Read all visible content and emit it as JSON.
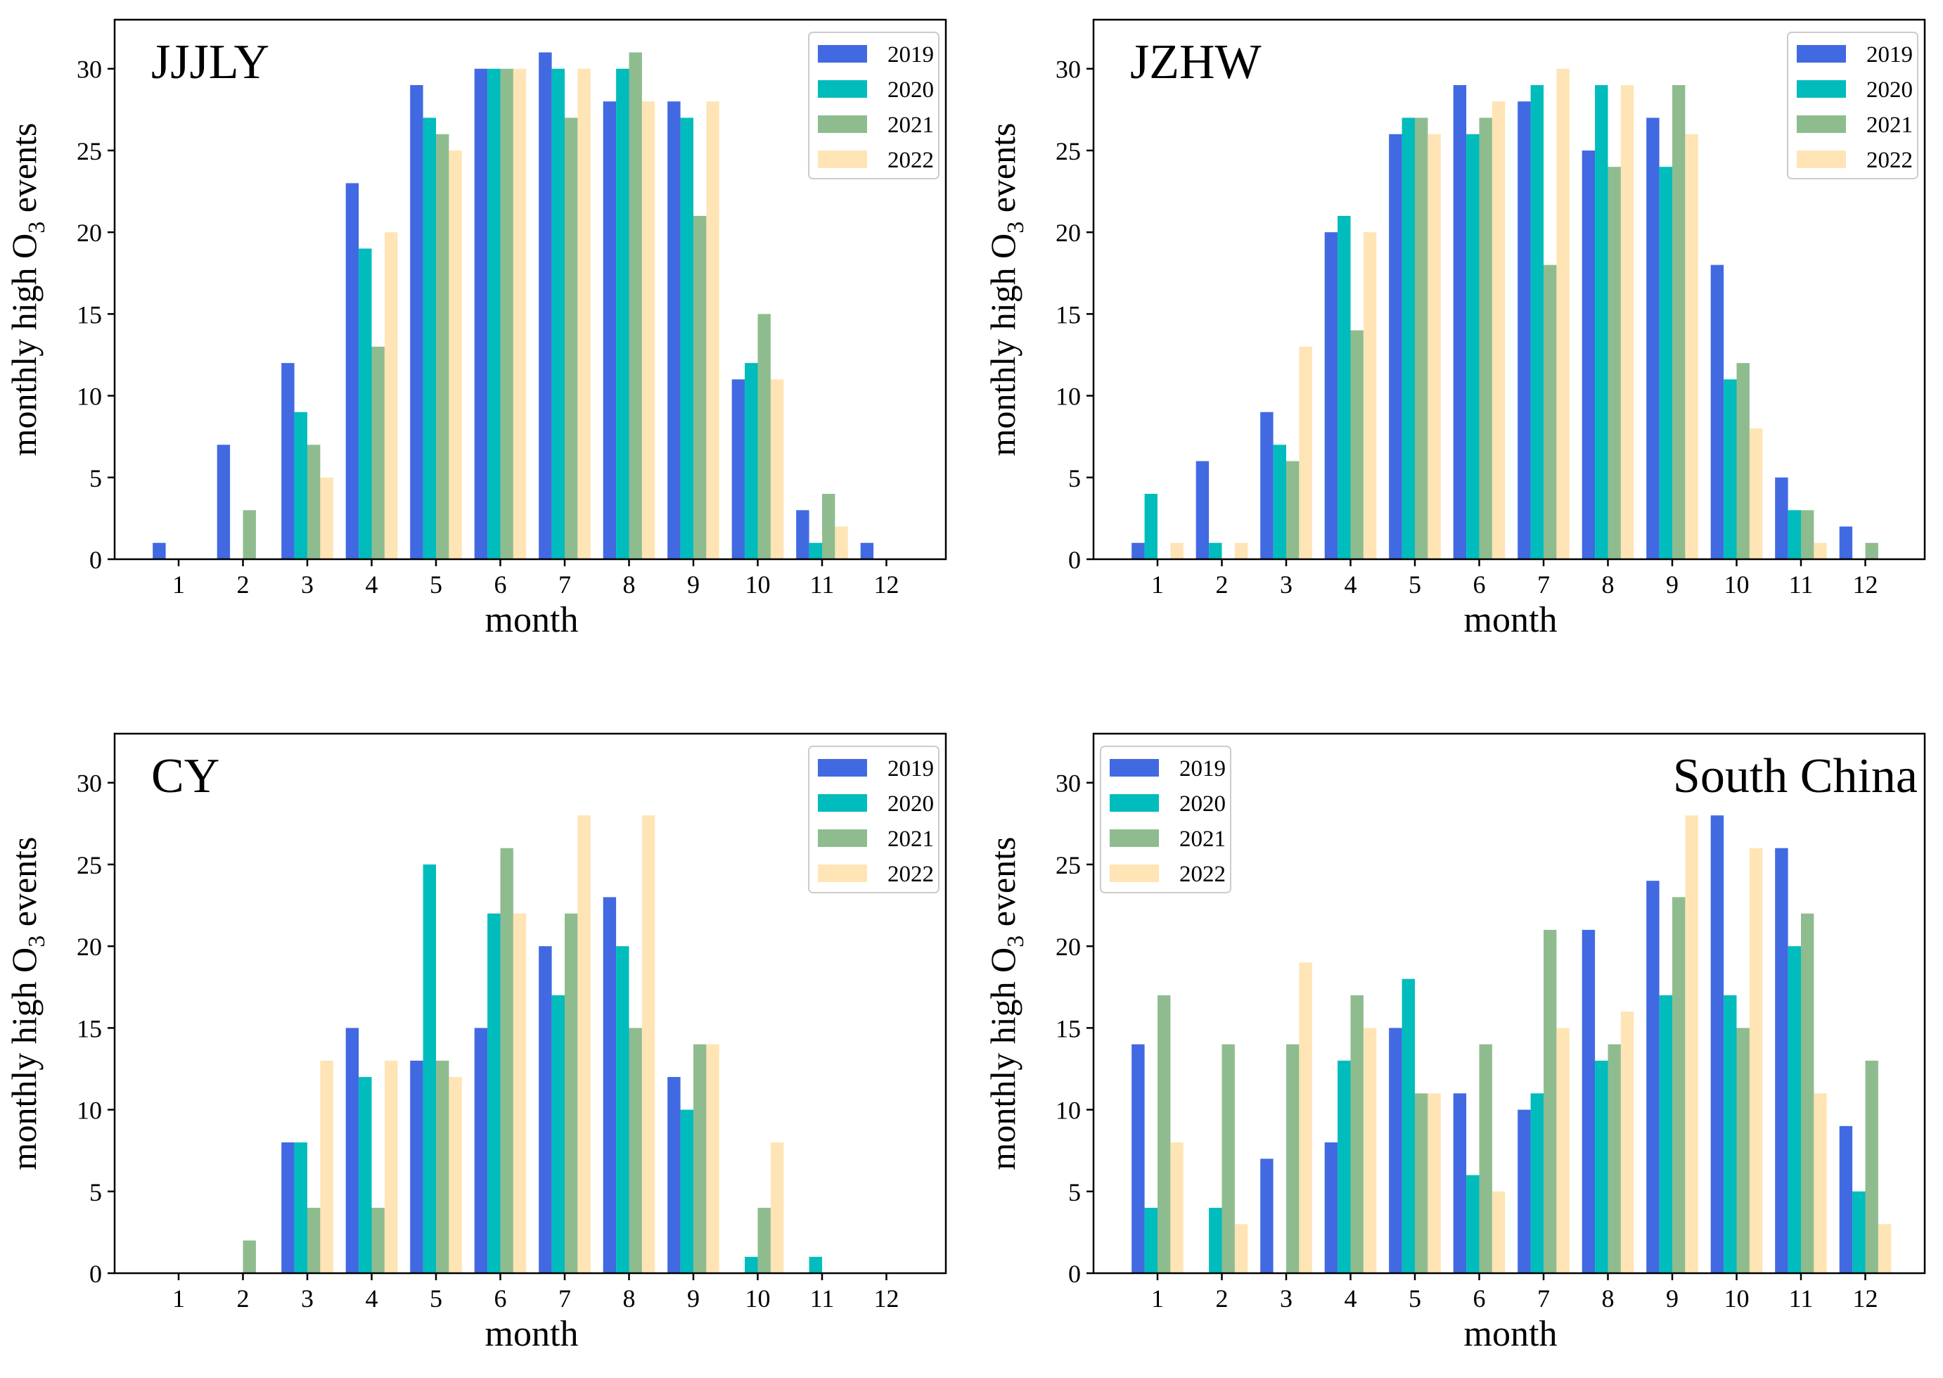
{
  "colors": {
    "2019": "#4169e1",
    "2020": "#00bcbc",
    "2021": "#8fbc8f",
    "2022": "#ffe4b5",
    "axis": "#000000"
  },
  "chart_data": [
    {
      "type": "bar",
      "title": "JJJLY",
      "xlabel": "month",
      "ylabel_main": "monthly high O",
      "ylabel_sub": "3",
      "ylabel_tail": " events",
      "categories": [
        "1",
        "2",
        "3",
        "4",
        "5",
        "6",
        "7",
        "8",
        "9",
        "10",
        "11",
        "12"
      ],
      "ylim": [
        0,
        33
      ],
      "yticks": [
        0,
        5,
        10,
        15,
        20,
        25,
        30
      ],
      "legend_position": "top-right",
      "title_position": "top-left",
      "series": [
        {
          "name": "2019",
          "values": [
            1,
            7,
            12,
            23,
            29,
            30,
            31,
            28,
            28,
            11,
            3,
            1
          ]
        },
        {
          "name": "2020",
          "values": [
            0,
            0,
            9,
            19,
            27,
            30,
            30,
            30,
            27,
            12,
            1,
            0
          ]
        },
        {
          "name": "2021",
          "values": [
            0,
            3,
            7,
            13,
            26,
            30,
            27,
            31,
            21,
            15,
            4,
            0
          ]
        },
        {
          "name": "2022",
          "values": [
            0,
            0,
            5,
            20,
            25,
            30,
            30,
            28,
            28,
            11,
            2,
            0
          ]
        }
      ]
    },
    {
      "type": "bar",
      "title": "JZHW",
      "xlabel": "month",
      "ylabel_main": "monthly high O",
      "ylabel_sub": "3",
      "ylabel_tail": " events",
      "categories": [
        "1",
        "2",
        "3",
        "4",
        "5",
        "6",
        "7",
        "8",
        "9",
        "10",
        "11",
        "12"
      ],
      "ylim": [
        0,
        33
      ],
      "yticks": [
        0,
        5,
        10,
        15,
        20,
        25,
        30
      ],
      "legend_position": "top-right",
      "title_position": "top-left",
      "series": [
        {
          "name": "2019",
          "values": [
            1,
            6,
            9,
            20,
            26,
            29,
            28,
            25,
            27,
            18,
            5,
            2
          ]
        },
        {
          "name": "2020",
          "values": [
            4,
            1,
            7,
            21,
            27,
            26,
            29,
            29,
            24,
            11,
            3,
            0
          ]
        },
        {
          "name": "2021",
          "values": [
            0,
            0,
            6,
            14,
            27,
            27,
            18,
            24,
            29,
            12,
            3,
            1
          ]
        },
        {
          "name": "2022",
          "values": [
            1,
            1,
            13,
            20,
            26,
            28,
            30,
            29,
            26,
            8,
            1,
            0
          ]
        }
      ]
    },
    {
      "type": "bar",
      "title": "CY",
      "xlabel": "month",
      "ylabel_main": "monthly high O",
      "ylabel_sub": "3",
      "ylabel_tail": " events",
      "categories": [
        "1",
        "2",
        "3",
        "4",
        "5",
        "6",
        "7",
        "8",
        "9",
        "10",
        "11",
        "12"
      ],
      "ylim": [
        0,
        33
      ],
      "yticks": [
        0,
        5,
        10,
        15,
        20,
        25,
        30
      ],
      "legend_position": "top-right",
      "title_position": "top-left",
      "series": [
        {
          "name": "2019",
          "values": [
            0,
            0,
            8,
            15,
            13,
            15,
            20,
            23,
            12,
            0,
            0,
            0
          ]
        },
        {
          "name": "2020",
          "values": [
            0,
            0,
            8,
            12,
            25,
            22,
            17,
            20,
            10,
            1,
            1,
            0
          ]
        },
        {
          "name": "2021",
          "values": [
            0,
            2,
            4,
            4,
            13,
            26,
            22,
            15,
            14,
            4,
            0,
            0
          ]
        },
        {
          "name": "2022",
          "values": [
            0,
            0,
            13,
            13,
            12,
            22,
            28,
            28,
            14,
            8,
            0,
            0
          ]
        }
      ]
    },
    {
      "type": "bar",
      "title": "South China",
      "xlabel": "month",
      "ylabel_main": "monthly high O",
      "ylabel_sub": "3",
      "ylabel_tail": " events",
      "categories": [
        "1",
        "2",
        "3",
        "4",
        "5",
        "6",
        "7",
        "8",
        "9",
        "10",
        "11",
        "12"
      ],
      "ylim": [
        0,
        33
      ],
      "yticks": [
        0,
        5,
        10,
        15,
        20,
        25,
        30
      ],
      "legend_position": "top-left",
      "title_position": "top-right",
      "series": [
        {
          "name": "2019",
          "values": [
            14,
            0,
            7,
            8,
            15,
            11,
            10,
            21,
            24,
            28,
            26,
            9
          ]
        },
        {
          "name": "2020",
          "values": [
            4,
            4,
            0,
            13,
            18,
            6,
            11,
            13,
            17,
            17,
            20,
            5
          ]
        },
        {
          "name": "2021",
          "values": [
            17,
            14,
            14,
            17,
            11,
            14,
            21,
            14,
            23,
            15,
            22,
            13
          ]
        },
        {
          "name": "2022",
          "values": [
            8,
            3,
            19,
            15,
            11,
            5,
            15,
            16,
            28,
            26,
            11,
            3
          ]
        }
      ]
    }
  ]
}
